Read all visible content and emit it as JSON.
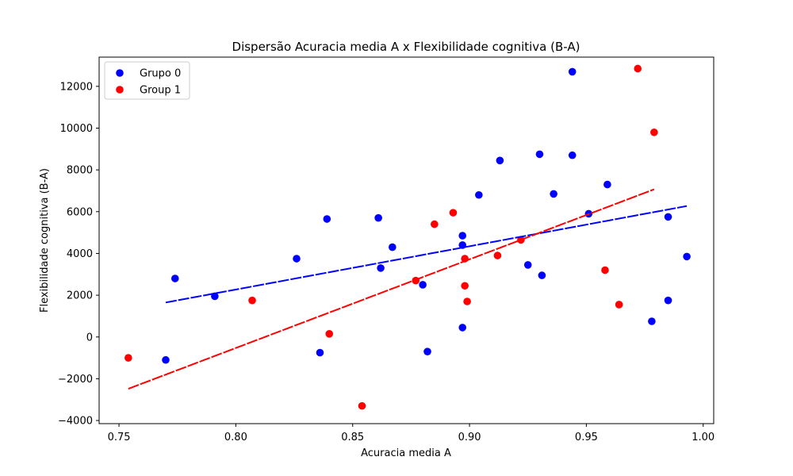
{
  "chart_data": {
    "type": "scatter",
    "title": "Dispersão Acuracia media A x Flexibilidade cognitiva (B-A)",
    "xlabel": "Acuracia media A",
    "ylabel": "Flexibilidade cognitiva (B-A)",
    "xlim": [
      0.7415,
      1.0045
    ],
    "ylim": [
      -4150,
      13400
    ],
    "xticks": [
      0.75,
      0.8,
      0.85,
      0.9,
      0.95,
      1.0
    ],
    "xtick_labels": [
      "0.75",
      "0.80",
      "0.85",
      "0.90",
      "0.95",
      "1.00"
    ],
    "yticks": [
      -4000,
      -2000,
      0,
      2000,
      4000,
      6000,
      8000,
      10000,
      12000
    ],
    "ytick_labels": [
      "−4000",
      "−2000",
      "0",
      "2000",
      "4000",
      "6000",
      "8000",
      "10000",
      "12000"
    ],
    "legend_position": "top-left",
    "grid": false,
    "series": [
      {
        "name": "Grupo 0",
        "color": "#0000ff",
        "points": [
          [
            0.77,
            -1100
          ],
          [
            0.774,
            2800
          ],
          [
            0.791,
            1950
          ],
          [
            0.826,
            3750
          ],
          [
            0.836,
            -750
          ],
          [
            0.839,
            5650
          ],
          [
            0.861,
            5700
          ],
          [
            0.862,
            3300
          ],
          [
            0.867,
            4300
          ],
          [
            0.88,
            2500
          ],
          [
            0.882,
            -700
          ],
          [
            0.897,
            4850
          ],
          [
            0.897,
            4400
          ],
          [
            0.897,
            450
          ],
          [
            0.904,
            6800
          ],
          [
            0.913,
            8450
          ],
          [
            0.925,
            3450
          ],
          [
            0.93,
            8750
          ],
          [
            0.931,
            2950
          ],
          [
            0.936,
            6850
          ],
          [
            0.944,
            12700
          ],
          [
            0.944,
            8700
          ],
          [
            0.951,
            5900
          ],
          [
            0.959,
            7300
          ],
          [
            0.978,
            750
          ],
          [
            0.985,
            5750
          ],
          [
            0.985,
            1750
          ],
          [
            0.993,
            3850
          ]
        ],
        "trend": {
          "x": [
            0.77,
            0.993
          ],
          "y": [
            1650,
            6270
          ]
        }
      },
      {
        "name": "Group 1",
        "color": "#ff0000",
        "points": [
          [
            0.754,
            -1000
          ],
          [
            0.807,
            1750
          ],
          [
            0.84,
            150
          ],
          [
            0.854,
            -3300
          ],
          [
            0.877,
            2700
          ],
          [
            0.885,
            5400
          ],
          [
            0.893,
            5950
          ],
          [
            0.898,
            3750
          ],
          [
            0.898,
            2450
          ],
          [
            0.899,
            1700
          ],
          [
            0.912,
            3900
          ],
          [
            0.922,
            4650
          ],
          [
            0.958,
            3200
          ],
          [
            0.964,
            1550
          ],
          [
            0.972,
            12850
          ],
          [
            0.979,
            9800
          ]
        ],
        "trend": {
          "x": [
            0.754,
            0.979
          ],
          "y": [
            -2480,
            7070
          ]
        }
      }
    ]
  }
}
